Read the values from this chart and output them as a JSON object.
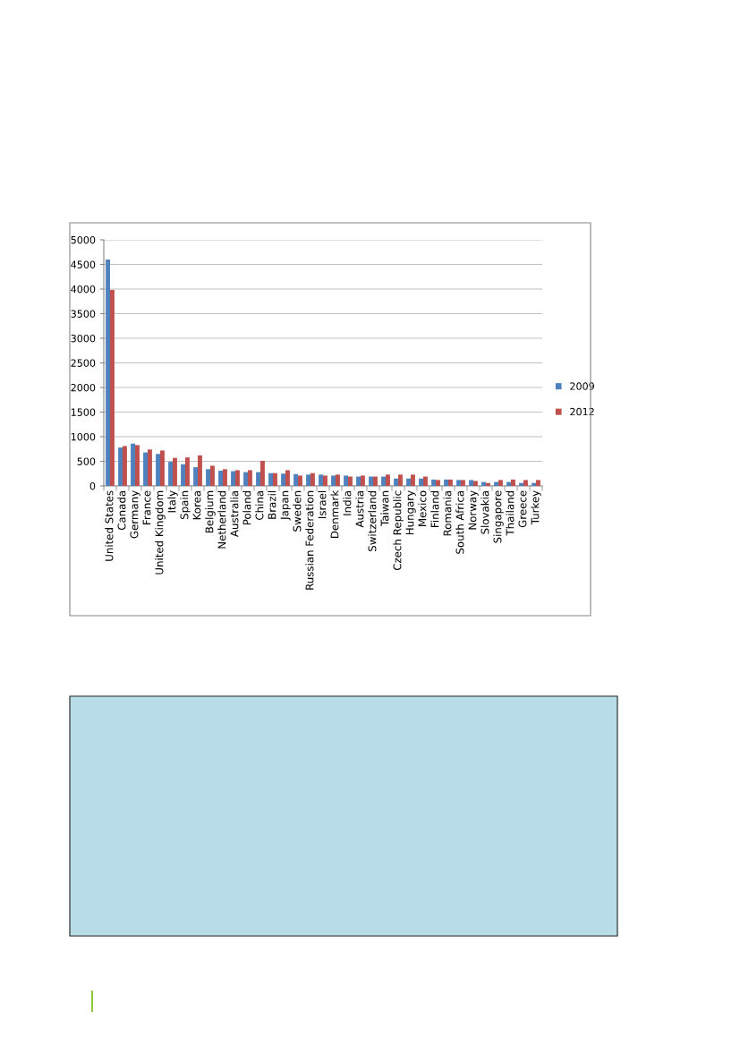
{
  "chart_data": {
    "type": "bar",
    "categories": [
      "United States",
      "Canada",
      "Germany",
      "France",
      "United Kingdom",
      "Italy",
      "Spain",
      "Korea",
      "Belgium",
      "Netherland",
      "Australia",
      "Poland",
      "China",
      "Brazil",
      "Japan",
      "Sweden",
      "Russian Federation",
      "Israel",
      "Denmark",
      "India",
      "Austria",
      "Switzerland",
      "Taiwan",
      "Czech Republic",
      "Hungary",
      "Mexico",
      "Finland",
      "Romania",
      "South Africa",
      "Norway",
      "Slovakia",
      "Singapore",
      "Thailand",
      "Greece",
      "Turkey"
    ],
    "series": [
      {
        "name": "2009",
        "color": "#4f81bd",
        "values": [
          4600,
          780,
          860,
          680,
          650,
          490,
          440,
          380,
          340,
          310,
          300,
          280,
          280,
          260,
          250,
          240,
          230,
          230,
          210,
          210,
          190,
          190,
          190,
          150,
          150,
          150,
          130,
          130,
          120,
          120,
          80,
          80,
          80,
          60,
          60
        ]
      },
      {
        "name": "2012",
        "color": "#c0504d",
        "values": [
          3980,
          810,
          830,
          740,
          720,
          570,
          580,
          620,
          410,
          340,
          320,
          320,
          510,
          260,
          320,
          210,
          260,
          210,
          230,
          190,
          210,
          190,
          230,
          230,
          230,
          190,
          120,
          130,
          120,
          100,
          60,
          120,
          130,
          120,
          120
        ]
      }
    ],
    "ylim": [
      0,
      5000
    ],
    "yticks": [
      0,
      500,
      1000,
      1500,
      2000,
      2500,
      3000,
      3500,
      4000,
      4500,
      5000
    ],
    "grid": "y",
    "legend": "right"
  }
}
